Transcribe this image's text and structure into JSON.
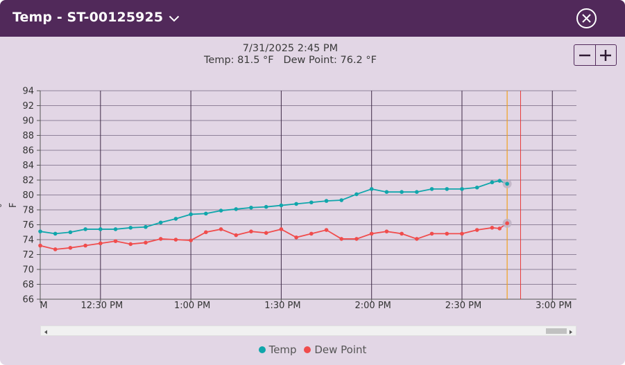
{
  "window": {
    "title": "Temp - ST-00125925"
  },
  "readout": {
    "datetime": "7/31/2025 2:45 PM",
    "values": "Temp: 81.5 °F   Dew Point: 76.2 °F"
  },
  "zoom": {
    "out_label": "−",
    "in_label": "+"
  },
  "colors": {
    "titlebar": "#51295a",
    "background": "#e2d6e5",
    "temp": "#10a6ab",
    "dew_point": "#f04c4c",
    "cursor_line": "#f0a020",
    "now_line": "#e83a3a"
  },
  "chart_data": {
    "type": "line",
    "ylabel": "° F",
    "ylim": [
      66,
      94
    ],
    "yticks": [
      "94",
      "92",
      "90",
      "88",
      "86",
      "84",
      "82",
      "80",
      "78",
      "76",
      "74",
      "72",
      "70",
      "68",
      "66"
    ],
    "x_start": "12:10 PM",
    "x_end": "3:08 PM",
    "xticks": [
      {
        "label": "M",
        "time": "12:10 PM"
      },
      {
        "label": "12:30 PM",
        "time": "12:30 PM"
      },
      {
        "label": "1:00 PM",
        "time": "1:00 PM"
      },
      {
        "label": "1:30 PM",
        "time": "1:30 PM"
      },
      {
        "label": "2:00 PM",
        "time": "2:00 PM"
      },
      {
        "label": "2:30 PM",
        "time": "2:30 PM"
      },
      {
        "label": "3:00 PM",
        "time": "3:00 PM"
      }
    ],
    "cursor_time": "2:45 PM",
    "now_time": "2:49 PM",
    "grid": true,
    "legend_position": "bottom",
    "series": [
      {
        "name": "Temp",
        "color": "#10a6ab",
        "points": [
          [
            "12:10 PM",
            75.1
          ],
          [
            "12:15 PM",
            74.8
          ],
          [
            "12:20 PM",
            75.0
          ],
          [
            "12:25 PM",
            75.4
          ],
          [
            "12:30 PM",
            75.4
          ],
          [
            "12:35 PM",
            75.4
          ],
          [
            "12:40 PM",
            75.6
          ],
          [
            "12:45 PM",
            75.7
          ],
          [
            "12:50 PM",
            76.3
          ],
          [
            "12:55 PM",
            76.8
          ],
          [
            "1:00 PM",
            77.4
          ],
          [
            "1:05 PM",
            77.5
          ],
          [
            "1:10 PM",
            77.9
          ],
          [
            "1:15 PM",
            78.1
          ],
          [
            "1:20 PM",
            78.3
          ],
          [
            "1:25 PM",
            78.4
          ],
          [
            "1:30 PM",
            78.6
          ],
          [
            "1:35 PM",
            78.8
          ],
          [
            "1:40 PM",
            79.0
          ],
          [
            "1:45 PM",
            79.2
          ],
          [
            "1:50 PM",
            79.3
          ],
          [
            "1:55 PM",
            80.1
          ],
          [
            "2:00 PM",
            80.8
          ],
          [
            "2:05 PM",
            80.4
          ],
          [
            "2:10 PM",
            80.4
          ],
          [
            "2:15 PM",
            80.4
          ],
          [
            "2:20 PM",
            80.8
          ],
          [
            "2:25 PM",
            80.8
          ],
          [
            "2:30 PM",
            80.8
          ],
          [
            "2:35 PM",
            81.0
          ],
          [
            "2:40 PM",
            81.7
          ],
          [
            "2:45 PM",
            81.9
          ],
          [
            "2:45 PM",
            81.5
          ]
        ]
      },
      {
        "name": "Dew Point",
        "color": "#f04c4c",
        "points": [
          [
            "12:10 PM",
            73.2
          ],
          [
            "12:15 PM",
            72.7
          ],
          [
            "12:20 PM",
            72.9
          ],
          [
            "12:25 PM",
            73.2
          ],
          [
            "12:30 PM",
            73.5
          ],
          [
            "12:35 PM",
            73.8
          ],
          [
            "12:40 PM",
            73.4
          ],
          [
            "12:45 PM",
            73.6
          ],
          [
            "12:50 PM",
            74.1
          ],
          [
            "12:55 PM",
            74.0
          ],
          [
            "1:00 PM",
            73.9
          ],
          [
            "1:05 PM",
            75.0
          ],
          [
            "1:10 PM",
            75.4
          ],
          [
            "1:15 PM",
            74.6
          ],
          [
            "1:20 PM",
            75.1
          ],
          [
            "1:25 PM",
            74.9
          ],
          [
            "1:30 PM",
            75.4
          ],
          [
            "1:35 PM",
            74.3
          ],
          [
            "1:40 PM",
            74.8
          ],
          [
            "1:45 PM",
            75.3
          ],
          [
            "1:50 PM",
            74.1
          ],
          [
            "1:55 PM",
            74.1
          ],
          [
            "2:00 PM",
            74.8
          ],
          [
            "2:05 PM",
            75.1
          ],
          [
            "2:10 PM",
            74.8
          ],
          [
            "2:15 PM",
            74.1
          ],
          [
            "2:20 PM",
            74.8
          ],
          [
            "2:25 PM",
            74.8
          ],
          [
            "2:30 PM",
            74.8
          ],
          [
            "2:35 PM",
            75.3
          ],
          [
            "2:40 PM",
            75.6
          ],
          [
            "2:45 PM",
            75.5
          ],
          [
            "2:45 PM",
            76.2
          ]
        ]
      }
    ]
  }
}
